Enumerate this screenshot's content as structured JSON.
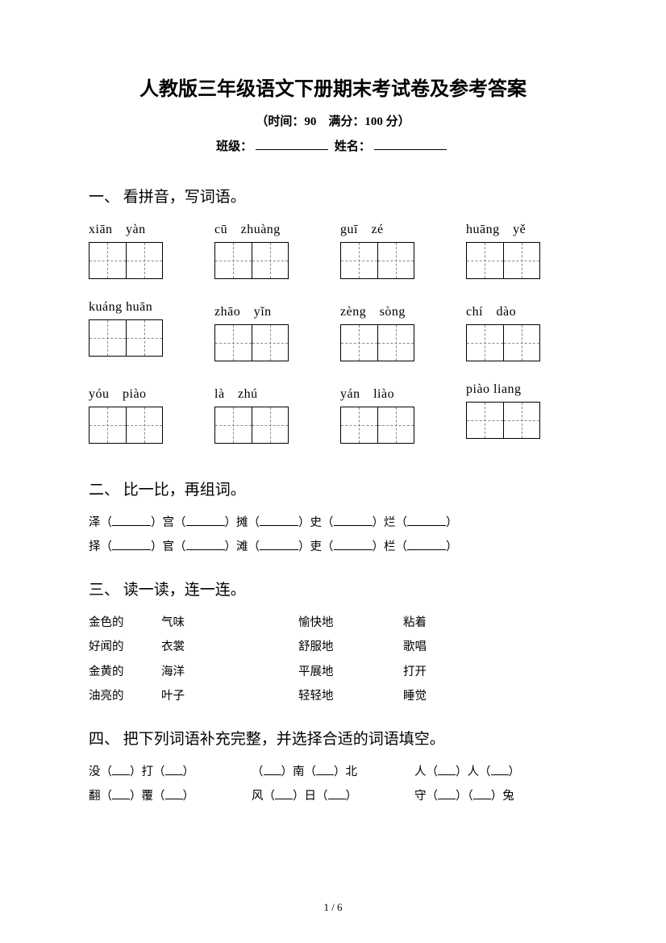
{
  "title": "人教版三年级语文下册期末考试卷及参考答案",
  "subtitle": "（时间：90　满分：100 分）",
  "fill": {
    "class_label": "班级：",
    "name_label": "姓名："
  },
  "s1": {
    "heading": "一、 看拼音，写词语。",
    "rows": [
      [
        "xiān　yàn",
        "cū　zhuàng",
        "guī　zé",
        "huāng　yě"
      ],
      [
        "kuáng huān",
        "zhāo　yǐn",
        "zèng　sòng",
        "chí　dào"
      ],
      [
        "yóu　piào",
        "là　zhú",
        "yán　liào",
        "piào liang"
      ]
    ]
  },
  "s2": {
    "heading": "二、 比一比，再组词。",
    "row1": [
      "泽（",
      "）宫（",
      "）摊（",
      "）史（",
      "）烂（",
      "）"
    ],
    "row2": [
      "择（",
      "）官（",
      "）滩（",
      "）吏（",
      "）栏（",
      "）"
    ]
  },
  "s3": {
    "heading": "三、 读一读，连一连。",
    "col1": [
      "金色的",
      "好闻的",
      "金黄的",
      "油亮的"
    ],
    "col2": [
      "气味",
      "衣裳",
      "海洋",
      "叶子"
    ],
    "col3": [
      "愉快地",
      "舒服地",
      "平展地",
      "轻轻地"
    ],
    "col4": [
      "粘着",
      "歌唱",
      "打开",
      "睡觉"
    ]
  },
  "s4": {
    "heading": "四、 把下列词语补充完整，并选择合适的词语填空。",
    "row1": [
      [
        "没（",
        "）打（",
        "）"
      ],
      [
        "（",
        "）南（",
        "）北"
      ],
      [
        "人（",
        "）人（",
        "）"
      ]
    ],
    "row2": [
      [
        "翻（",
        "）覆（",
        "）"
      ],
      [
        "风（",
        "）日（",
        "）"
      ],
      [
        "守（",
        "）（",
        "）兔"
      ]
    ]
  },
  "footer": "1 / 6"
}
